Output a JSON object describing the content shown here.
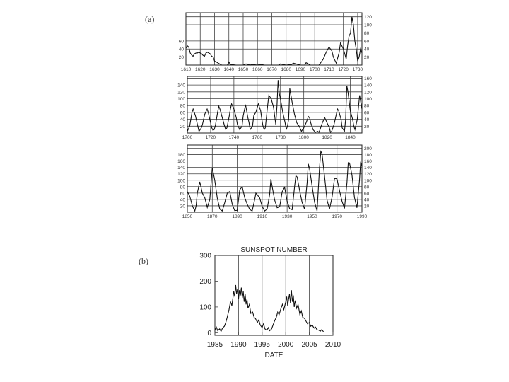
{
  "labels": {
    "a": "(a)",
    "b": "(b)"
  },
  "chart_data": [
    {
      "type": "line",
      "panel": "a1",
      "grid": true,
      "xlim": [
        1610,
        1733
      ],
      "x_ticks": [
        1610,
        1620,
        1630,
        1640,
        1650,
        1660,
        1670,
        1680,
        1690,
        1700,
        1710,
        1720,
        1730
      ],
      "x_tick_labels": [
        "1610",
        "1620",
        "1630",
        "1640",
        "1650",
        "1660",
        "1670",
        "1680",
        "1690",
        "1700",
        "1710",
        "1720",
        "1730"
      ],
      "y_left_ticks": [
        20,
        40,
        60
      ],
      "y_left_tick_labels": [
        "20",
        "40",
        "60"
      ],
      "y_right_ticks": [
        20,
        40,
        60,
        80,
        100,
        120
      ],
      "y_right_tick_labels": [
        "20",
        "40",
        "60",
        "80",
        "100",
        "120"
      ],
      "ylim": [
        0,
        130
      ],
      "x": [
        1610,
        1611,
        1612,
        1613,
        1614,
        1615,
        1616,
        1617,
        1618,
        1619,
        1620,
        1621,
        1622,
        1623,
        1624,
        1625,
        1626,
        1627,
        1628,
        1629,
        1630,
        1635,
        1639,
        1640,
        1641,
        1645,
        1650,
        1652,
        1655,
        1656,
        1660,
        1662,
        1665,
        1670,
        1675,
        1676,
        1680,
        1684,
        1685,
        1690,
        1693,
        1694,
        1697,
        1700,
        1703,
        1705,
        1706,
        1708,
        1710,
        1712,
        1713,
        1715,
        1717,
        1718,
        1720,
        1721,
        1722,
        1723,
        1724,
        1725,
        1726,
        1727,
        1728,
        1729,
        1730,
        1731,
        1732,
        1733
      ],
      "y": [
        42,
        48,
        45,
        30,
        25,
        22,
        28,
        30,
        30,
        32,
        30,
        28,
        24,
        22,
        30,
        32,
        30,
        28,
        22,
        20,
        10,
        0,
        0,
        8,
        2,
        0,
        0,
        3,
        0,
        2,
        0,
        2,
        0,
        0,
        0,
        3,
        0,
        2,
        5,
        0,
        0,
        6,
        0,
        0,
        0,
        10,
        15,
        32,
        45,
        35,
        20,
        5,
        30,
        55,
        40,
        28,
        15,
        50,
        72,
        80,
        120,
        100,
        60,
        40,
        10,
        20,
        40,
        30
      ]
    },
    {
      "type": "line",
      "panel": "a2",
      "grid": true,
      "xlim": [
        1700,
        1850
      ],
      "x_ticks": [
        1700,
        1720,
        1740,
        1760,
        1780,
        1800,
        1820,
        1840
      ],
      "x_tick_labels": [
        "1700",
        "1720",
        "1740",
        "1760",
        "1780",
        "1800",
        "1820",
        "1840"
      ],
      "y_left_ticks": [
        20,
        40,
        60,
        80,
        100,
        120,
        140
      ],
      "y_left_tick_labels": [
        "20",
        "40",
        "60",
        "80",
        "100",
        "120",
        "140"
      ],
      "y_right_ticks": [
        20,
        40,
        60,
        80,
        100,
        120,
        140,
        160
      ],
      "y_right_tick_labels": [
        "20",
        "40",
        "60",
        "80",
        "100",
        "120",
        "140",
        "160"
      ],
      "ylim": [
        0,
        165
      ],
      "x": [
        1700,
        1702,
        1704,
        1705,
        1707,
        1710,
        1712,
        1713,
        1715,
        1717,
        1718,
        1720,
        1721,
        1722,
        1723,
        1724,
        1726,
        1727,
        1728,
        1730,
        1732,
        1733,
        1734,
        1736,
        1737,
        1738,
        1740,
        1742,
        1743,
        1745,
        1747,
        1748,
        1750,
        1752,
        1753,
        1754,
        1756,
        1757,
        1759,
        1761,
        1763,
        1764,
        1765,
        1766,
        1767,
        1769,
        1770,
        1772,
        1774,
        1775,
        1776,
        1777,
        1778,
        1779,
        1780,
        1782,
        1784,
        1785,
        1786,
        1787,
        1788,
        1790,
        1792,
        1794,
        1796,
        1798,
        1800,
        1802,
        1804,
        1805,
        1806,
        1808,
        1810,
        1812,
        1813,
        1814,
        1816,
        1818,
        1820,
        1822,
        1823,
        1824,
        1826,
        1828,
        1829,
        1830,
        1832,
        1833,
        1835,
        1836,
        1837,
        1838,
        1840,
        1842,
        1843,
        1844,
        1846,
        1848,
        1850
      ],
      "y": [
        5,
        20,
        60,
        70,
        50,
        5,
        15,
        25,
        55,
        70,
        60,
        30,
        15,
        8,
        10,
        20,
        60,
        78,
        70,
        45,
        20,
        10,
        15,
        50,
        70,
        85,
        70,
        45,
        25,
        10,
        20,
        50,
        83,
        45,
        30,
        10,
        20,
        50,
        62,
        85,
        65,
        40,
        20,
        10,
        15,
        80,
        110,
        100,
        75,
        50,
        25,
        80,
        154,
        115,
        100,
        60,
        30,
        10,
        20,
        40,
        130,
        90,
        55,
        30,
        20,
        5,
        15,
        30,
        48,
        45,
        30,
        10,
        2,
        5,
        2,
        10,
        30,
        45,
        30,
        15,
        2,
        5,
        25,
        55,
        70,
        65,
        40,
        15,
        5,
        40,
        138,
        120,
        65,
        40,
        20,
        10,
        40,
        110,
        70
      ]
    },
    {
      "type": "line",
      "panel": "a3",
      "grid": true,
      "xlim": [
        1850,
        1990
      ],
      "x_ticks": [
        1850,
        1870,
        1890,
        1910,
        1930,
        1950,
        1970,
        1990
      ],
      "x_tick_labels": [
        "1850",
        "1870",
        "1890",
        "1910",
        "1930",
        "1950",
        "1970",
        "1990"
      ],
      "y_left_ticks": [
        20,
        40,
        60,
        80,
        100,
        120,
        140,
        160,
        180
      ],
      "y_left_tick_labels": [
        "20",
        "40",
        "60",
        "80",
        "100",
        "120",
        "140",
        "160",
        "180"
      ],
      "y_right_ticks": [
        20,
        40,
        60,
        80,
        100,
        120,
        140,
        160,
        180,
        200
      ],
      "y_right_tick_labels": [
        "20",
        "40",
        "60",
        "80",
        "100",
        "120",
        "140",
        "160",
        "180",
        "200"
      ],
      "ylim": [
        0,
        210
      ],
      "x": [
        1850,
        1852,
        1854,
        1856,
        1857,
        1858,
        1860,
        1862,
        1864,
        1866,
        1868,
        1870,
        1872,
        1874,
        1876,
        1878,
        1880,
        1882,
        1884,
        1886,
        1888,
        1890,
        1892,
        1894,
        1896,
        1898,
        1900,
        1902,
        1904,
        1905,
        1906,
        1908,
        1910,
        1912,
        1914,
        1916,
        1917,
        1918,
        1920,
        1922,
        1924,
        1926,
        1928,
        1930,
        1932,
        1934,
        1936,
        1937,
        1938,
        1940,
        1942,
        1944,
        1946,
        1947,
        1948,
        1950,
        1952,
        1954,
        1956,
        1957,
        1958,
        1960,
        1962,
        1964,
        1966,
        1968,
        1970,
        1972,
        1974,
        1976,
        1978,
        1979,
        1980,
        1982,
        1984,
        1986,
        1988,
        1989,
        1990
      ],
      "y": [
        65,
        50,
        20,
        4,
        20,
        60,
        95,
        60,
        45,
        15,
        40,
        139,
        100,
        45,
        10,
        4,
        30,
        60,
        65,
        25,
        5,
        6,
        70,
        80,
        45,
        25,
        9,
        4,
        40,
        60,
        55,
        45,
        18,
        4,
        10,
        55,
        104,
        80,
        38,
        14,
        17,
        64,
        78,
        35,
        11,
        8,
        80,
        114,
        110,
        68,
        31,
        10,
        92,
        151,
        136,
        83,
        31,
        4,
        140,
        190,
        184,
        112,
        38,
        10,
        47,
        106,
        104,
        68,
        34,
        12,
        93,
        155,
        154,
        116,
        46,
        14,
        100,
        158,
        142
      ]
    },
    {
      "type": "line",
      "panel": "b",
      "title": "SUNSPOT NUMBER",
      "xlabel": "DATE",
      "ylabel": "",
      "grid": false,
      "vertical_lines_x": [
        1990,
        1995,
        2000,
        2005
      ],
      "xlim": [
        1985,
        2010
      ],
      "ylim": [
        -10,
        300
      ],
      "x_ticks": [
        1985,
        1990,
        1995,
        2000,
        2005,
        2010
      ],
      "x_tick_labels": [
        "1985",
        "1990",
        "1995",
        "2000",
        "2005",
        "2010"
      ],
      "y_ticks": [
        0,
        100,
        200,
        300
      ],
      "y_tick_labels": [
        "0",
        "100",
        "200",
        "300"
      ],
      "series": [
        {
          "x": [
            1985.0,
            1985.3,
            1985.6,
            1986.0,
            1986.3,
            1986.6,
            1987.0,
            1987.3,
            1987.6,
            1988.0,
            1988.3,
            1988.6,
            1989.0,
            1989.2,
            1989.4,
            1989.6,
            1989.8,
            1990.0,
            1990.2,
            1990.4,
            1990.6,
            1990.8,
            1991.0,
            1991.2,
            1991.4,
            1991.6,
            1991.8,
            1992.0,
            1992.3,
            1992.6,
            1993.0,
            1993.3,
            1993.6,
            1994.0,
            1994.3,
            1994.6,
            1995.0,
            1995.3,
            1995.6,
            1996.0,
            1996.3,
            1996.6,
            1997.0,
            1997.3,
            1997.6,
            1998.0,
            1998.3,
            1998.6,
            1999.0,
            1999.3,
            1999.6,
            2000.0,
            2000.2,
            2000.4,
            2000.6,
            2000.8,
            2001.0,
            2001.2,
            2001.4,
            2001.6,
            2001.8,
            2002.0,
            2002.3,
            2002.6,
            2003.0,
            2003.3,
            2003.6,
            2004.0,
            2004.3,
            2004.6,
            2005.0,
            2005.3,
            2005.6,
            2006.0,
            2006.3,
            2006.6,
            2007.0,
            2007.3,
            2007.6,
            2008.0
          ],
          "y": [
            10,
            22,
            8,
            15,
            5,
            18,
            25,
            40,
            60,
            90,
            120,
            105,
            160,
            140,
            185,
            150,
            170,
            130,
            165,
            145,
            175,
            135,
            160,
            120,
            150,
            110,
            130,
            95,
            110,
            75,
            80,
            60,
            55,
            40,
            50,
            30,
            20,
            35,
            15,
            10,
            20,
            8,
            15,
            30,
            45,
            60,
            80,
            70,
            95,
            110,
            90,
            120,
            140,
            105,
            130,
            150,
            115,
            165,
            120,
            145,
            100,
            125,
            95,
            110,
            70,
            85,
            60,
            55,
            45,
            35,
            40,
            25,
            30,
            18,
            22,
            12,
            10,
            6,
            12,
            4
          ]
        }
      ]
    }
  ]
}
